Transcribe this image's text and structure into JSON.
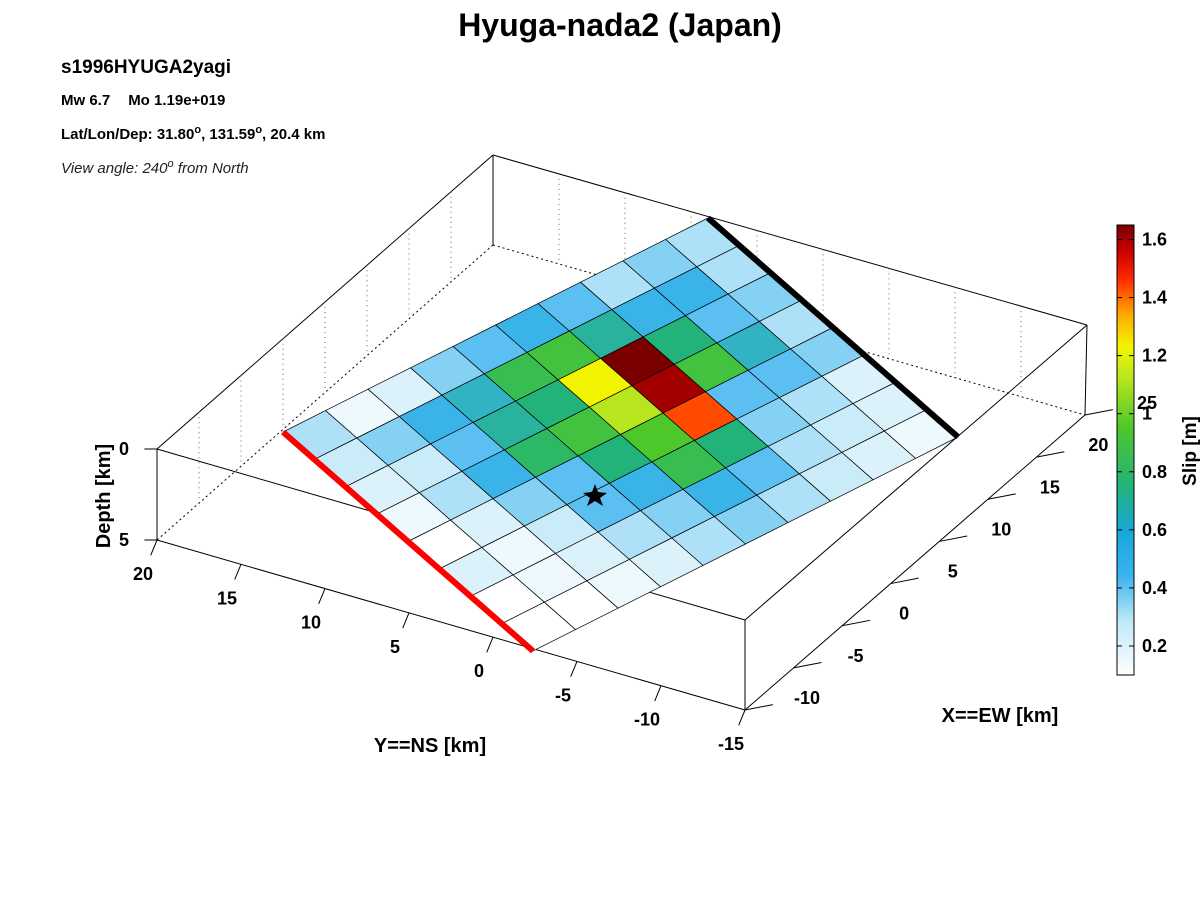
{
  "title": "Hyuga-nada2 (Japan)",
  "info": {
    "event_id": "s1996HYUGA2yagi",
    "mw": "Mw 6.7",
    "mo": "Mo 1.19e+019",
    "latlondep_prefix": "Lat/Lon/Dep: 31.80",
    "lon_part": ", 131.59",
    "dep_part": ", 20.4 km",
    "view_prefix": "View angle: 240",
    "view_suffix": " from North",
    "degree_symbol": "o"
  },
  "chart_data": {
    "type": "heatmap",
    "subtype": "3d fault slip distribution",
    "title": "Hyuga-nada2 (Japan)",
    "xlabel": "X==EW [km]",
    "ylabel": "Y==NS [km]",
    "zlabel": "Depth [km]",
    "colorbar_label": "Slip [m]",
    "colorbar_range": [
      0.1,
      1.65
    ],
    "colorbar_ticks": [
      "0.2",
      "0.4",
      "0.6",
      "0.8",
      "1",
      "1.2",
      "1.4",
      "1.6"
    ],
    "x_ticks": [
      "-10",
      "-5",
      "0",
      "5",
      "10",
      "15",
      "20",
      "25"
    ],
    "y_ticks": [
      "-15",
      "-10",
      "-5",
      "0",
      "5",
      "10",
      "15",
      "20"
    ],
    "z_ticks": [
      "0",
      "5"
    ],
    "grid": "dotted",
    "grid_size": {
      "along_strike": 10,
      "down_dip": 8
    },
    "slip": [
      [
        0.3,
        0.35,
        0.3,
        0.4,
        0.45,
        0.4,
        0.35,
        0.2,
        0.15,
        0.3
      ],
      [
        0.3,
        0.45,
        0.45,
        0.55,
        0.75,
        0.7,
        0.5,
        0.45,
        0.35,
        0.25
      ],
      [
        0.35,
        0.4,
        0.6,
        1.65,
        1.05,
        0.6,
        0.55,
        0.4,
        0.25,
        0.2
      ],
      [
        0.3,
        0.5,
        0.75,
        1.6,
        0.95,
        0.75,
        0.65,
        0.45,
        0.3,
        0.15
      ],
      [
        0.35,
        0.4,
        0.4,
        1.4,
        0.8,
        0.6,
        0.4,
        0.35,
        0.2,
        0.1
      ],
      [
        0.2,
        0.3,
        0.35,
        0.6,
        0.7,
        0.45,
        0.4,
        0.25,
        0.15,
        0.2
      ],
      [
        0.2,
        0.25,
        0.3,
        0.4,
        0.45,
        0.35,
        0.3,
        0.2,
        0.15,
        0.1
      ],
      [
        0.15,
        0.2,
        0.25,
        0.3,
        0.35,
        0.3,
        0.2,
        0.15,
        0.1,
        0.1
      ]
    ],
    "hypocenter_marker": "star",
    "fault_edges": [
      {
        "edge": "top",
        "color": "#000000"
      },
      {
        "edge": "bottom",
        "color": "#ff0000"
      }
    ]
  }
}
